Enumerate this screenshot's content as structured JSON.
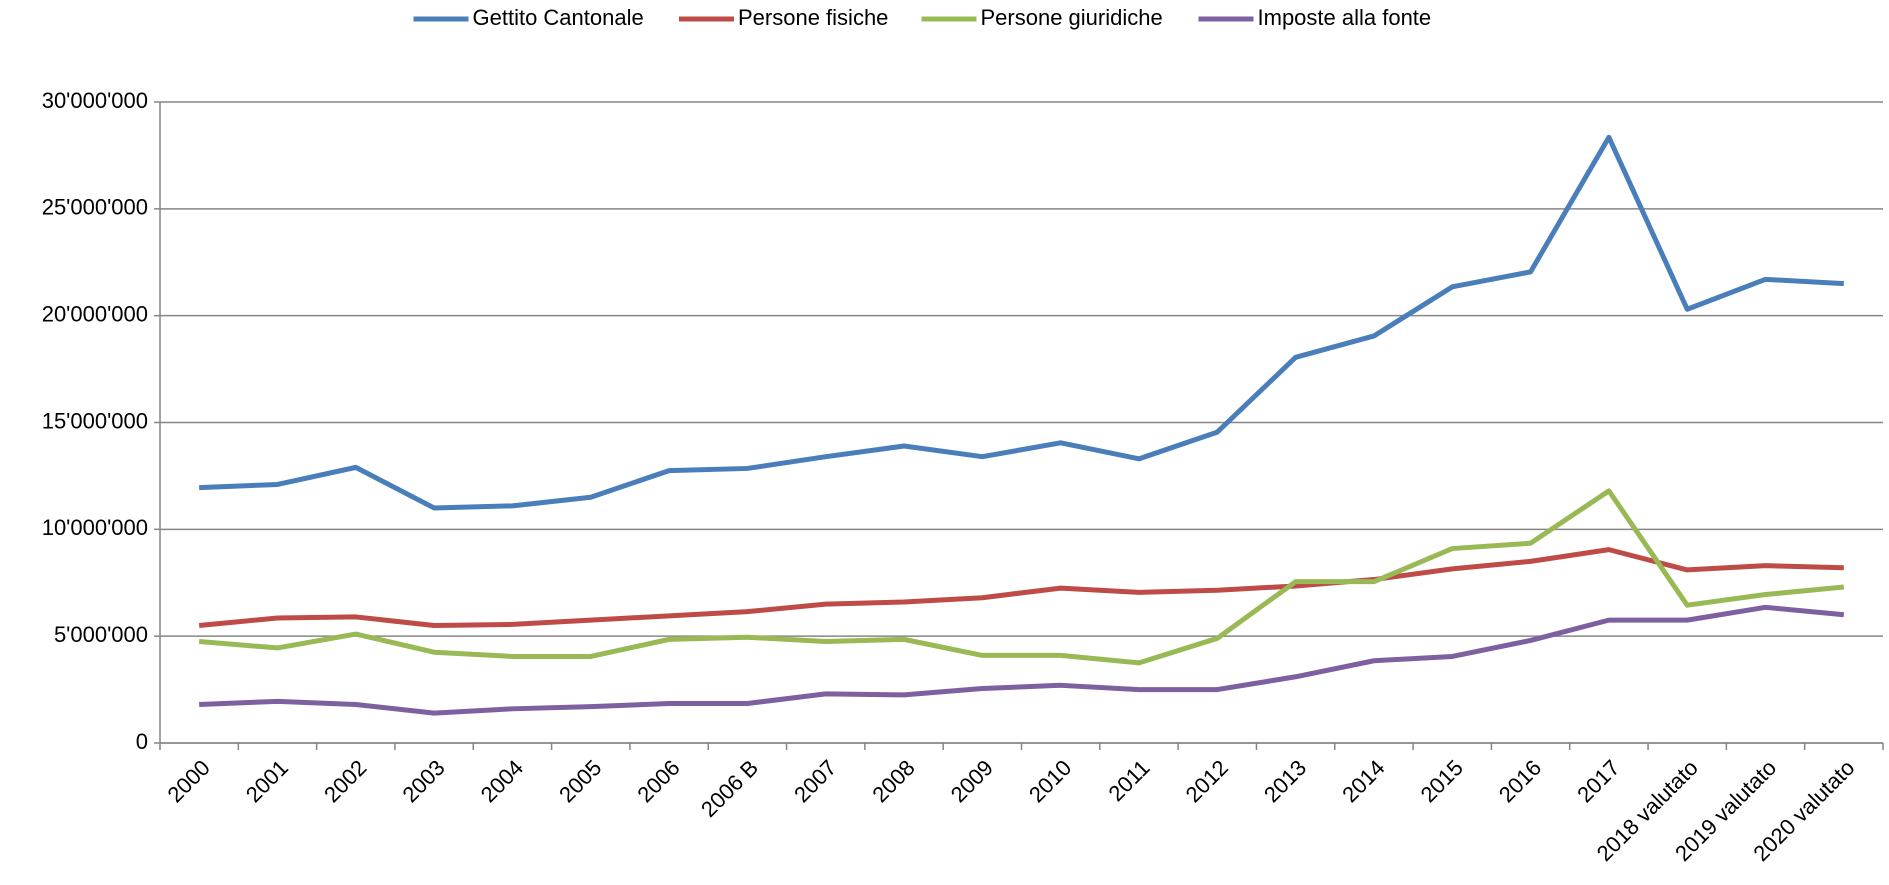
{
  "chart_data": {
    "type": "line",
    "categories": [
      "2000",
      "2001",
      "2002",
      "2003",
      "2004",
      "2005",
      "2006",
      "2006 B",
      "2007",
      "2008",
      "2009",
      "2010",
      "2011",
      "2012",
      "2013",
      "2014",
      "2015",
      "2016",
      "2017",
      "2018 valutato",
      "2019 valutato",
      "2020 valutato"
    ],
    "series": [
      {
        "name": "Gettito Cantonale",
        "color": "#4a7ebb",
        "values": [
          11950000,
          12100000,
          12900000,
          11000000,
          11100000,
          11500000,
          12750000,
          12850000,
          13400000,
          13900000,
          13400000,
          14050000,
          13300000,
          14550000,
          18050000,
          19050000,
          21350000,
          22050000,
          28350000,
          20300000,
          21700000,
          21500000
        ]
      },
      {
        "name": "Persone fisiche",
        "color": "#be4b48",
        "values": [
          5500000,
          5850000,
          5900000,
          5500000,
          5550000,
          5750000,
          5950000,
          6150000,
          6500000,
          6600000,
          6800000,
          7250000,
          7050000,
          7150000,
          7350000,
          7650000,
          8150000,
          8500000,
          9050000,
          8100000,
          8300000,
          8200000
        ]
      },
      {
        "name": "Persone giuridiche",
        "color": "#98b954",
        "values": [
          4750000,
          4450000,
          5100000,
          4250000,
          4050000,
          4050000,
          4850000,
          4950000,
          4750000,
          4850000,
          4100000,
          4100000,
          3750000,
          4900000,
          7550000,
          7550000,
          9100000,
          9350000,
          11800000,
          6450000,
          6950000,
          7300000
        ]
      },
      {
        "name": "Imposte alla fonte",
        "color": "#7d60a0",
        "values": [
          1800000,
          1950000,
          1800000,
          1400000,
          1600000,
          1700000,
          1850000,
          1850000,
          2300000,
          2250000,
          2550000,
          2700000,
          2500000,
          2500000,
          3100000,
          3850000,
          4050000,
          4800000,
          5750000,
          5750000,
          6350000,
          6000000
        ]
      }
    ],
    "ylim": [
      0,
      30000000
    ],
    "yticks": [
      0,
      {
        "value": 5000000,
        "label": "5'000'000"
      },
      {
        "value": 10000000,
        "label": "10'000'000"
      },
      {
        "value": 15000000,
        "label": "15'000'000"
      },
      {
        "value": 20000000,
        "label": "20'000'000"
      },
      {
        "value": 25000000,
        "label": "25'000'000"
      },
      {
        "value": 30000000,
        "label": "30'000'000"
      }
    ],
    "grid": true,
    "legend": "top"
  }
}
